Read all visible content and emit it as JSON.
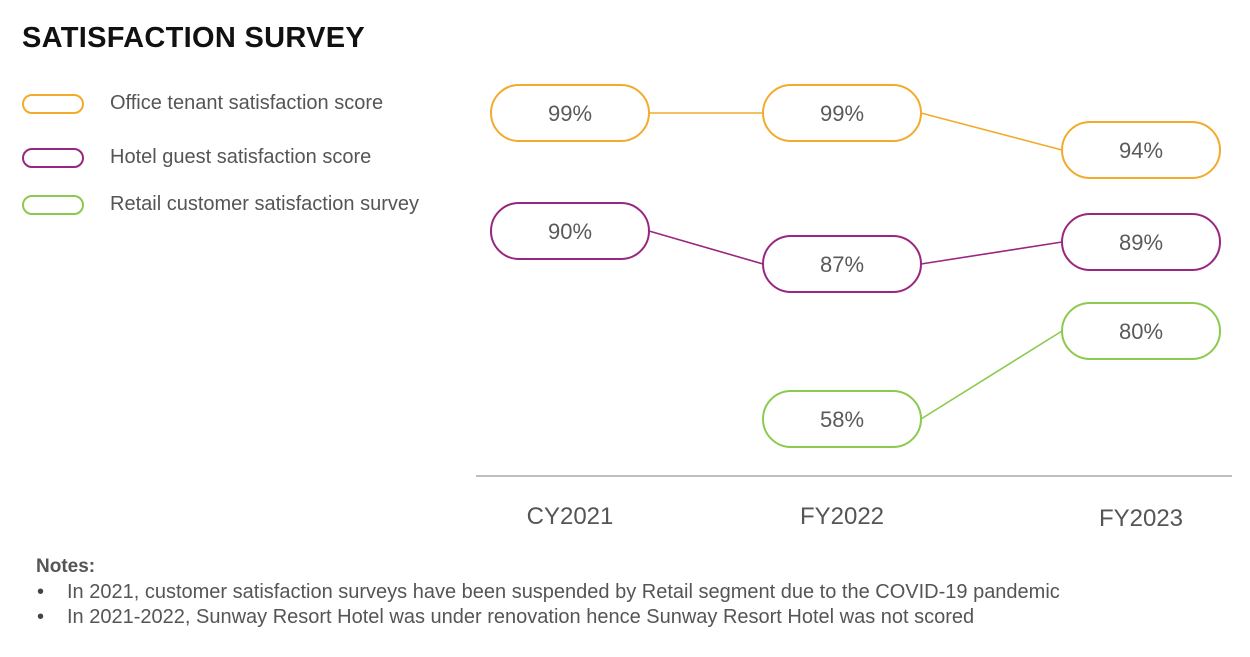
{
  "title": "SATISFACTION SURVEY",
  "colors": {
    "office": "#f2ab2b",
    "hotel": "#99267f",
    "retail": "#8cca4e",
    "axis": "#aaaaaa",
    "label_text": "#5a5a5a"
  },
  "chart_data": {
    "type": "line",
    "title": "",
    "xlabel": "",
    "ylabel": "",
    "categories": [
      "CY2021",
      "FY2022",
      "FY2023"
    ],
    "ylim": [
      50,
      100
    ],
    "grid": false,
    "legend_position": "left",
    "unit": "%",
    "series": [
      {
        "name": "Office tenant satisfaction score",
        "color_key": "office",
        "values": [
          99,
          99,
          94
        ],
        "labels": [
          "99%",
          "99%",
          "94%"
        ]
      },
      {
        "name": "Hotel guest satisfaction score",
        "color_key": "hotel",
        "values": [
          90,
          87,
          89
        ],
        "labels": [
          "90%",
          "87%",
          "89%"
        ]
      },
      {
        "name": "Retail customer satisfaction survey",
        "color_key": "retail",
        "values": [
          null,
          58,
          80
        ],
        "labels": [
          null,
          "58%",
          "80%"
        ]
      }
    ]
  },
  "notes": {
    "heading": "Notes:",
    "items": [
      "In 2021, customer satisfaction surveys have been suspended by Retail segment due to the COVID-19 pandemic",
      "In 2021-2022, Sunway Resort Hotel was under renovation hence Sunway Resort Hotel was not scored"
    ]
  }
}
